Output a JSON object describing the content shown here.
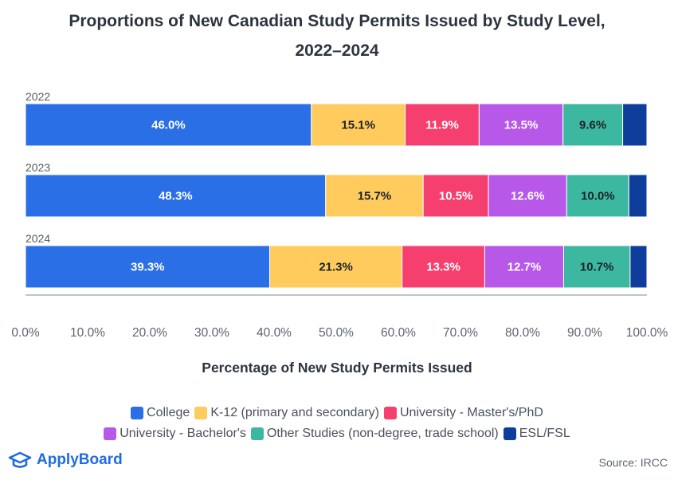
{
  "chart_data": {
    "type": "bar",
    "orientation": "horizontal",
    "stacked": true,
    "title": "Proportions of New Canadian Study Permits Issued by Study Level, 2022–2024",
    "xlabel": "Percentage of New Study Permits Issued",
    "ylabel": "",
    "xlim": [
      0,
      100
    ],
    "x_ticks": [
      "0.0%",
      "10.0%",
      "20.0%",
      "30.0%",
      "40.0%",
      "50.0%",
      "60.0%",
      "70.0%",
      "80.0%",
      "90.0%",
      "100.0%"
    ],
    "categories": [
      "2022",
      "2023",
      "2024"
    ],
    "series": [
      {
        "name": "College",
        "color": "#2b6fe6",
        "values": [
          46.0,
          48.3,
          39.3
        ]
      },
      {
        "name": "K-12 (primary and secondary)",
        "color": "#ffcb5c",
        "values": [
          15.1,
          15.7,
          21.3
        ]
      },
      {
        "name": "University - Master's/PhD",
        "color": "#f53f6e",
        "values": [
          11.9,
          10.5,
          13.3
        ]
      },
      {
        "name": "University - Bachelor's",
        "color": "#b758e8",
        "values": [
          13.5,
          12.6,
          12.7
        ]
      },
      {
        "name": "Other Studies (non-degree, trade school)",
        "color": "#3db8a0",
        "values": [
          9.6,
          10.0,
          10.7
        ]
      },
      {
        "name": "ESL/FSL",
        "color": "#0e3d9c",
        "values": [
          3.9,
          2.9,
          2.7
        ]
      }
    ],
    "data_labels_shown_for": [
      "College",
      "K-12 (primary and secondary)",
      "University - Master's/PhD",
      "University - Bachelor's",
      "Other Studies (non-degree, trade school)"
    ],
    "legend": "bottom",
    "grid": false
  },
  "title_lines": [
    "Proportions of New Canadian Study Permits Issued by Study Level,",
    "2022–2024"
  ],
  "legend_rows": [
    [
      "College",
      "K-12 (primary and secondary)",
      "University - Master's/PhD"
    ],
    [
      "University - Bachelor's",
      "Other Studies (non-degree, trade school)",
      "ESL/FSL"
    ]
  ],
  "brand": {
    "name": "ApplyBoard",
    "icon": "graduation-cap-icon",
    "color": "#1f6be3"
  },
  "source": "Source: IRCC"
}
